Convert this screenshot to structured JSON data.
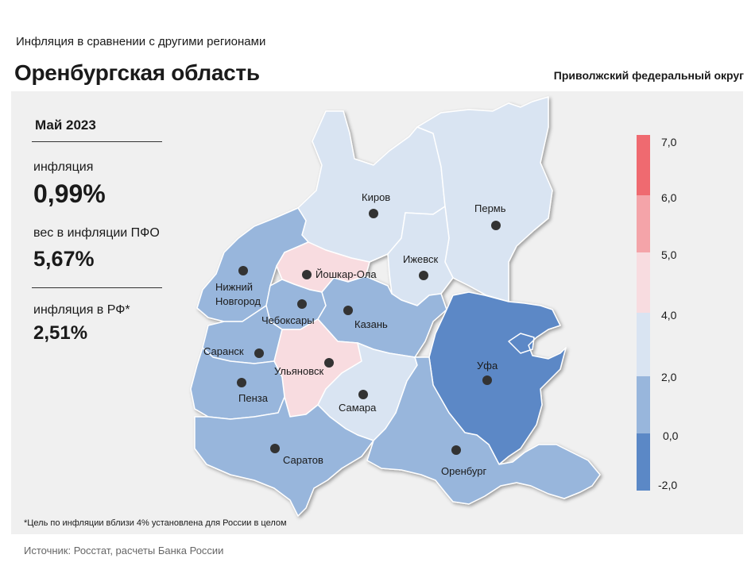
{
  "header": {
    "subtitle": "Инфляция  в сравнении  с другими  регионами",
    "title": "Оренбургская область",
    "district": "Приволжский федеральный округ"
  },
  "info": {
    "month": "Май 2023",
    "inflation_label": "инфляция",
    "inflation_value": "0,99%",
    "weight_label": "вес в инфляции  ПФО",
    "weight_value": "5,67%",
    "rf_label": "инфляция  в РФ*",
    "rf_value": "2,51%"
  },
  "footnote": "*Цель по инфляции вблизи 4% установлена для России в целом",
  "source": "Источник: Росстат, расчеты Банка России",
  "colors": {
    "below_0": "#5b88c6",
    "0_2": "#98b6dc",
    "2_4": "#d9e4f2",
    "4_5": "#f8dce0",
    "5_6": "#f4a4a9",
    "6_7": "#ef6a70"
  },
  "legend": {
    "labels": [
      "7,0",
      "6,0",
      "5,0",
      "4,0",
      "2,0",
      "0,0",
      "-2,0"
    ]
  },
  "regions": [
    {
      "name": "Киров",
      "color": "#d9e4f2"
    },
    {
      "name": "Пермь",
      "color": "#d9e4f2"
    },
    {
      "name": "Ижевск",
      "color": "#d9e4f2"
    },
    {
      "name": "Нижний Новгород",
      "color": "#98b6dc"
    },
    {
      "name": "Йошкар-Ола",
      "color": "#f8dce0"
    },
    {
      "name": "Чебоксары",
      "color": "#98b6dc"
    },
    {
      "name": "Казань",
      "color": "#98b6dc"
    },
    {
      "name": "Саранск",
      "color": "#98b6dc"
    },
    {
      "name": "Ульяновск",
      "color": "#f8dce0"
    },
    {
      "name": "Пенза",
      "color": "#98b6dc"
    },
    {
      "name": "Самара",
      "color": "#d9e4f2"
    },
    {
      "name": "Саратов",
      "color": "#98b6dc"
    },
    {
      "name": "Уфа",
      "color": "#5b88c6"
    },
    {
      "name": "Оренбург",
      "color": "#98b6dc"
    }
  ],
  "city_labels": {
    "kirov": "Киров",
    "perm": "Пермь",
    "izhevsk": "Ижевск",
    "nn_line1": "Нижний",
    "nn_line2": "Новгород",
    "yoshkar": "Йошкар-Ола",
    "cheb": "Чебоксары",
    "kazan": "Казань",
    "saransk": "Саранск",
    "ulyan": "Ульяновск",
    "penza": "Пенза",
    "samara": "Самара",
    "saratov": "Саратов",
    "ufa": "Уфа",
    "orenburg": "Оренбург"
  }
}
